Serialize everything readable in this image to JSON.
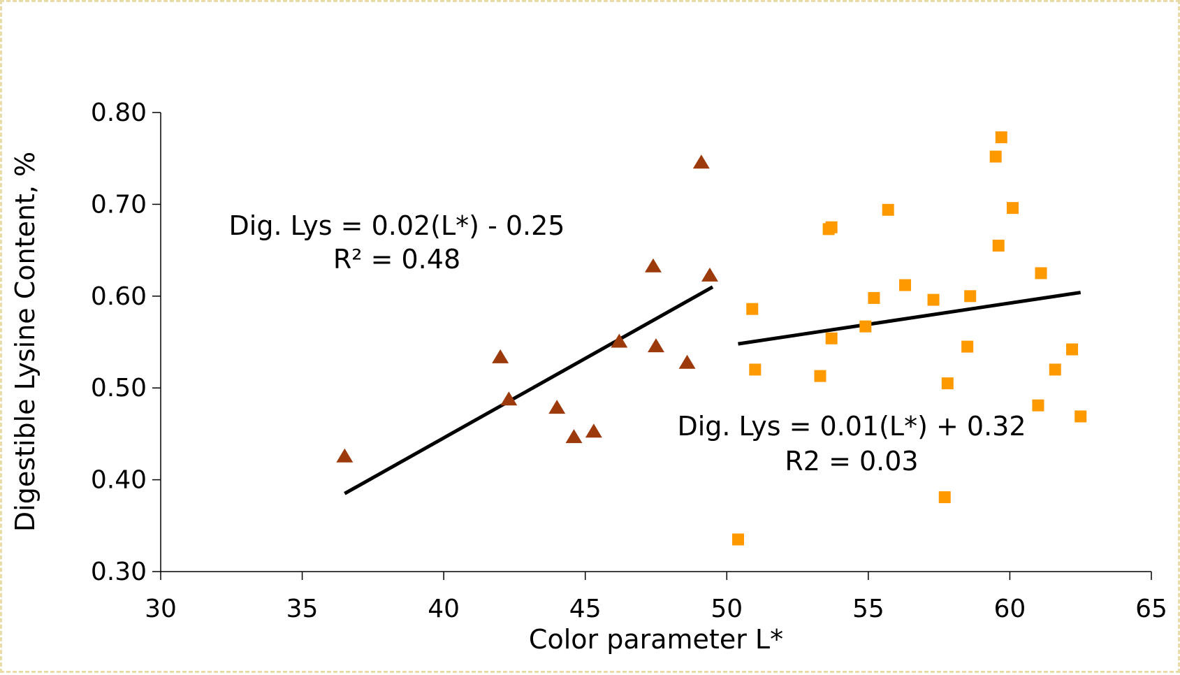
{
  "chart_data": {
    "type": "scatter",
    "xlabel": "Color parameter L*",
    "ylabel": "Digestible Lysine Content, %",
    "xlim": [
      30,
      65
    ],
    "ylim": [
      0.3,
      0.8
    ],
    "x_ticks": [
      "30",
      "35",
      "40",
      "45",
      "50",
      "55",
      "60",
      "65"
    ],
    "y_ticks": [
      "0.30",
      "0.40",
      "0.50",
      "0.60",
      "0.70",
      "0.80"
    ],
    "grid": false,
    "legend": "none",
    "series": [
      {
        "marker": "triangle",
        "color": "#9c3a0c",
        "points": [
          [
            36.5,
            0.425
          ],
          [
            42.0,
            0.533
          ],
          [
            42.3,
            0.487
          ],
          [
            44.0,
            0.478
          ],
          [
            44.6,
            0.446
          ],
          [
            45.3,
            0.452
          ],
          [
            46.2,
            0.55
          ],
          [
            47.4,
            0.632
          ],
          [
            47.5,
            0.545
          ],
          [
            48.6,
            0.527
          ],
          [
            49.1,
            0.745
          ],
          [
            49.4,
            0.622
          ]
        ],
        "trendline": {
          "x": [
            36.5,
            49.5
          ],
          "y": [
            0.385,
            0.61
          ]
        }
      },
      {
        "marker": "square",
        "color": "#ff9900",
        "points": [
          [
            50.4,
            0.335
          ],
          [
            50.9,
            0.586
          ],
          [
            51.0,
            0.52
          ],
          [
            53.3,
            0.513
          ],
          [
            53.6,
            0.673
          ],
          [
            53.7,
            0.675
          ],
          [
            53.7,
            0.554
          ],
          [
            54.9,
            0.567
          ],
          [
            55.2,
            0.598
          ],
          [
            55.7,
            0.694
          ],
          [
            56.3,
            0.612
          ],
          [
            57.3,
            0.596
          ],
          [
            57.7,
            0.381
          ],
          [
            57.8,
            0.505
          ],
          [
            58.5,
            0.545
          ],
          [
            58.6,
            0.6
          ],
          [
            59.5,
            0.752
          ],
          [
            59.6,
            0.655
          ],
          [
            59.7,
            0.773
          ],
          [
            60.1,
            0.696
          ],
          [
            61.0,
            0.481
          ],
          [
            61.1,
            0.625
          ],
          [
            61.6,
            0.52
          ],
          [
            62.2,
            0.542
          ],
          [
            62.5,
            0.469
          ]
        ],
        "trendline": {
          "x": [
            50.4,
            62.5
          ],
          "y": [
            0.548,
            0.604
          ]
        }
      }
    ],
    "annotations": [
      {
        "line1": "Dig. Lys = 0.02(L*) - 0.25",
        "line2": "R² = 0.48"
      },
      {
        "line1": "Dig. Lys = 0.01(L*) + 0.32",
        "line2": "R2 = 0.03"
      }
    ]
  }
}
